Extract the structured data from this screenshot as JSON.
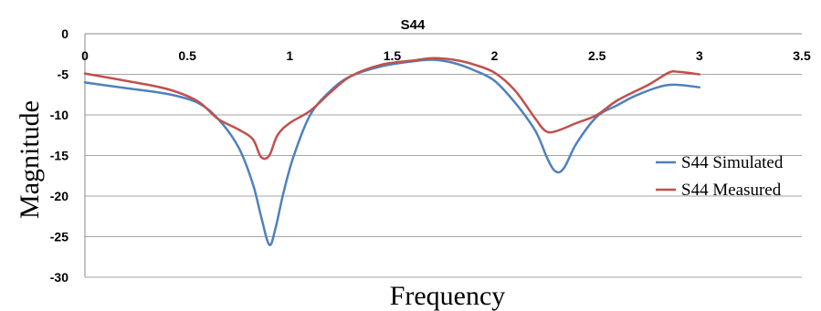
{
  "chart_data": {
    "type": "line",
    "title": "S44",
    "xlabel": "Frequency",
    "ylabel": "Magnitude",
    "xlim": [
      0,
      3.5
    ],
    "ylim": [
      -30,
      0
    ],
    "x_ticks": [
      "0",
      "0.5",
      "1",
      "1.5",
      "2",
      "2.5",
      "3",
      "3.5"
    ],
    "y_ticks": [
      "0",
      "-5",
      "-10",
      "-15",
      "-20",
      "-25",
      "-30"
    ],
    "grid": true,
    "legend_position": "right",
    "series": [
      {
        "name": "S44 Simulated",
        "color": "#4f81bd",
        "points": [
          [
            0,
            -6.0
          ],
          [
            0.2,
            -6.7
          ],
          [
            0.4,
            -7.4
          ],
          [
            0.55,
            -8.5
          ],
          [
            0.65,
            -10.5
          ],
          [
            0.75,
            -14.0
          ],
          [
            0.82,
            -18.5
          ],
          [
            0.86,
            -22.5
          ],
          [
            0.9,
            -26.0
          ],
          [
            0.93,
            -24.0
          ],
          [
            0.97,
            -19.5
          ],
          [
            1.02,
            -15.0
          ],
          [
            1.1,
            -10.0
          ],
          [
            1.2,
            -7.0
          ],
          [
            1.3,
            -5.2
          ],
          [
            1.45,
            -4.0
          ],
          [
            1.6,
            -3.4
          ],
          [
            1.7,
            -3.2
          ],
          [
            1.8,
            -3.6
          ],
          [
            1.9,
            -4.5
          ],
          [
            2.0,
            -5.8
          ],
          [
            2.1,
            -8.5
          ],
          [
            2.2,
            -12.0
          ],
          [
            2.26,
            -15.5
          ],
          [
            2.3,
            -17.0
          ],
          [
            2.34,
            -16.5
          ],
          [
            2.4,
            -13.5
          ],
          [
            2.5,
            -10.2
          ],
          [
            2.6,
            -8.8
          ],
          [
            2.7,
            -7.5
          ],
          [
            2.85,
            -6.3
          ],
          [
            3.0,
            -6.6
          ]
        ]
      },
      {
        "name": "S44 Measured",
        "color": "#c0504d",
        "points": [
          [
            0,
            -4.9
          ],
          [
            0.2,
            -5.8
          ],
          [
            0.4,
            -6.8
          ],
          [
            0.55,
            -8.3
          ],
          [
            0.65,
            -10.5
          ],
          [
            0.75,
            -11.8
          ],
          [
            0.82,
            -13.0
          ],
          [
            0.86,
            -15.2
          ],
          [
            0.9,
            -15.0
          ],
          [
            0.94,
            -12.5
          ],
          [
            1.0,
            -11.0
          ],
          [
            1.1,
            -9.5
          ],
          [
            1.2,
            -7.2
          ],
          [
            1.3,
            -5.2
          ],
          [
            1.45,
            -3.8
          ],
          [
            1.6,
            -3.3
          ],
          [
            1.7,
            -3.0
          ],
          [
            1.8,
            -3.2
          ],
          [
            1.9,
            -3.8
          ],
          [
            2.0,
            -4.8
          ],
          [
            2.1,
            -7.0
          ],
          [
            2.2,
            -10.5
          ],
          [
            2.25,
            -12.0
          ],
          [
            2.3,
            -12.0
          ],
          [
            2.4,
            -11.0
          ],
          [
            2.5,
            -10.0
          ],
          [
            2.6,
            -8.2
          ],
          [
            2.75,
            -6.3
          ],
          [
            2.85,
            -4.8
          ],
          [
            2.9,
            -4.7
          ],
          [
            3.0,
            -5.0
          ]
        ]
      }
    ]
  }
}
